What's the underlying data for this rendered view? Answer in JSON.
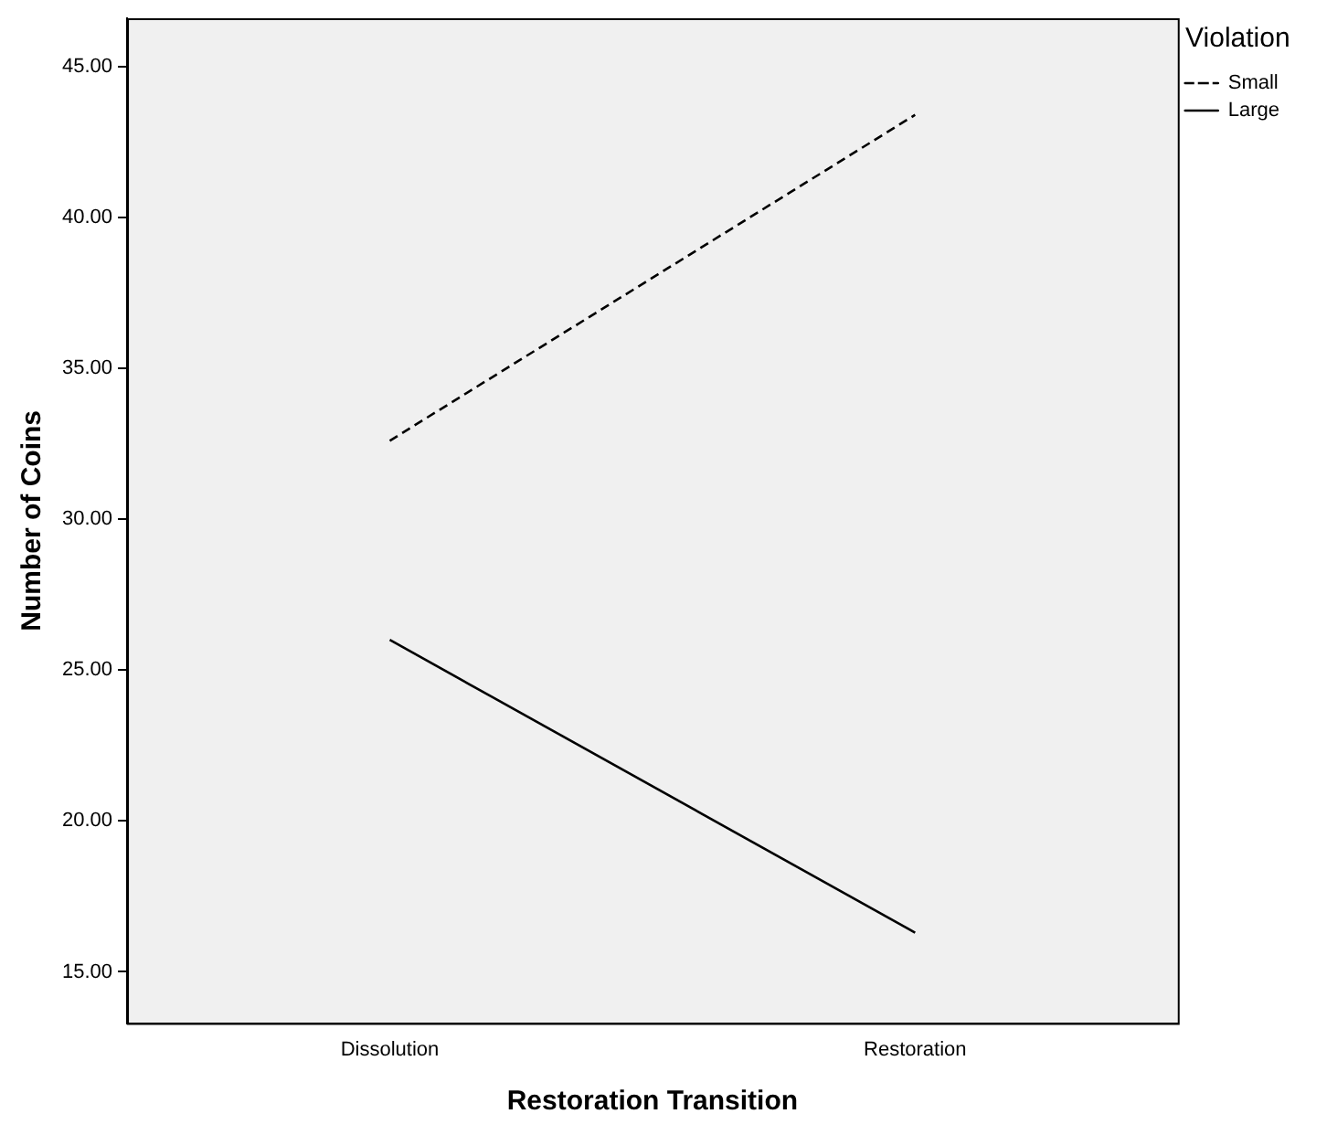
{
  "chart_data": {
    "type": "line",
    "xlabel": "Restoration Transition",
    "ylabel": "Number of Coins",
    "legend_title": "Violation",
    "legend": "top right",
    "categories": [
      "Dissolution",
      "Restoration"
    ],
    "series": [
      {
        "name": "Small",
        "color": "#000000",
        "values": [
          32.6,
          43.4
        ],
        "line_style": "dashed"
      },
      {
        "name": "Large",
        "color": "#000000",
        "values": [
          26.0,
          16.3
        ],
        "line_style": "solid"
      }
    ],
    "ylim": [
      13.3,
      46.6
    ],
    "yticks": [
      {
        "value": 15,
        "label": "15.00"
      },
      {
        "value": 20,
        "label": "20.00"
      },
      {
        "value": 25,
        "label": "25.00"
      },
      {
        "value": 30,
        "label": "30.00"
      },
      {
        "value": 35,
        "label": "35.00"
      },
      {
        "value": 40,
        "label": "40.00"
      },
      {
        "value": 45,
        "label": "45.00"
      }
    ],
    "grid": false,
    "marker": "none"
  }
}
